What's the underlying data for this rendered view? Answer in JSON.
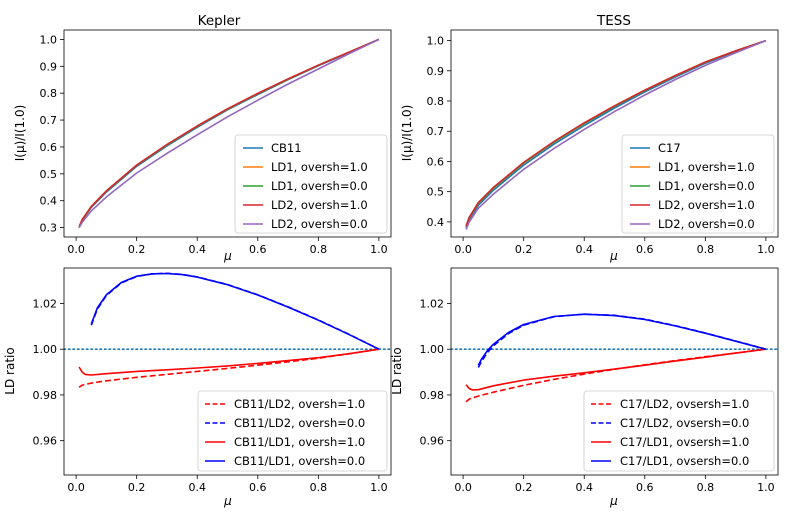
{
  "chart_data": [
    {
      "id": "kepler-intensity",
      "type": "line",
      "title": "Kepler",
      "xlabel": "μ",
      "ylabel": "I(μ)/I(1.0)",
      "xlim": [
        -0.04,
        1.04
      ],
      "ylim": [
        0.265,
        1.035
      ],
      "xticks": [
        0.0,
        0.2,
        0.4,
        0.6,
        0.8,
        1.0
      ],
      "yticks": [
        0.3,
        0.4,
        0.5,
        0.6,
        0.7,
        0.8,
        0.9,
        1.0
      ],
      "xtick_labels": [
        "0.0",
        "0.2",
        "0.4",
        "0.6",
        "0.8",
        "1.0"
      ],
      "ytick_labels": [
        "0.3",
        "0.4",
        "0.5",
        "0.6",
        "0.7",
        "0.8",
        "0.9",
        "1.0"
      ],
      "grid": false,
      "legend_position": "lower-right",
      "series": [
        {
          "name": "CB11",
          "color": "#1f77b4",
          "dash": "solid",
          "x": [
            0.01,
            0.02,
            0.05,
            0.1,
            0.2,
            0.3,
            0.4,
            0.5,
            0.6,
            0.7,
            0.8,
            0.9,
            1.0
          ],
          "y": [
            0.3,
            0.327,
            0.375,
            0.432,
            0.528,
            0.604,
            0.673,
            0.738,
            0.795,
            0.85,
            0.902,
            0.951,
            1.0
          ]
        },
        {
          "name": "LD1, oversh=1.0",
          "color": "#ff7f0e",
          "dash": "solid",
          "x": [
            0.01,
            0.02,
            0.05,
            0.1,
            0.2,
            0.3,
            0.4,
            0.5,
            0.6,
            0.7,
            0.8,
            0.9,
            1.0
          ],
          "y": [
            0.3,
            0.329,
            0.378,
            0.436,
            0.532,
            0.608,
            0.677,
            0.741,
            0.798,
            0.852,
            0.904,
            0.952,
            1.0
          ]
        },
        {
          "name": "LD1, oversh=0.0",
          "color": "#2ca02c",
          "dash": "solid",
          "x": [
            0.01,
            0.02,
            0.05,
            0.1,
            0.2,
            0.3,
            0.4,
            0.5,
            0.6,
            0.7,
            0.8,
            0.9,
            1.0
          ],
          "y": [
            0.3,
            0.329,
            0.378,
            0.436,
            0.532,
            0.608,
            0.677,
            0.741,
            0.798,
            0.852,
            0.904,
            0.952,
            1.0
          ]
        },
        {
          "name": "LD2, oversh=1.0",
          "color": "#d62728",
          "dash": "solid",
          "x": [
            0.01,
            0.02,
            0.05,
            0.1,
            0.2,
            0.3,
            0.4,
            0.5,
            0.6,
            0.7,
            0.8,
            0.9,
            1.0
          ],
          "y": [
            0.303,
            0.33,
            0.379,
            0.437,
            0.533,
            0.609,
            0.678,
            0.742,
            0.799,
            0.853,
            0.904,
            0.952,
            1.0
          ]
        },
        {
          "name": "LD2, oversh=0.0",
          "color": "#9467bd",
          "dash": "solid",
          "x": [
            0.01,
            0.02,
            0.05,
            0.1,
            0.2,
            0.3,
            0.4,
            0.5,
            0.6,
            0.7,
            0.8,
            0.9,
            1.0
          ],
          "y": [
            0.3,
            0.32,
            0.362,
            0.414,
            0.503,
            0.576,
            0.645,
            0.712,
            0.774,
            0.834,
            0.89,
            0.946,
            1.0
          ]
        }
      ]
    },
    {
      "id": "tess-intensity",
      "type": "line",
      "title": "TESS",
      "xlabel": "μ",
      "ylabel": "I(μ)/I(1.0)",
      "xlim": [
        -0.04,
        1.04
      ],
      "ylim": [
        0.35,
        1.035
      ],
      "xticks": [
        0.0,
        0.2,
        0.4,
        0.6,
        0.8,
        1.0
      ],
      "yticks": [
        0.4,
        0.5,
        0.6,
        0.7,
        0.8,
        0.9,
        1.0
      ],
      "xtick_labels": [
        "0.0",
        "0.2",
        "0.4",
        "0.6",
        "0.8",
        "1.0"
      ],
      "ytick_labels": [
        "0.4",
        "0.5",
        "0.6",
        "0.7",
        "0.8",
        "0.9",
        "1.0"
      ],
      "grid": false,
      "legend_position": "lower-right",
      "series": [
        {
          "name": "C17",
          "color": "#1f77b4",
          "dash": "solid",
          "x": [
            0.01,
            0.02,
            0.05,
            0.1,
            0.2,
            0.3,
            0.4,
            0.5,
            0.6,
            0.7,
            0.8,
            0.9,
            1.0
          ],
          "y": [
            0.38,
            0.408,
            0.455,
            0.505,
            0.588,
            0.657,
            0.719,
            0.777,
            0.83,
            0.879,
            0.925,
            0.964,
            1.0
          ]
        },
        {
          "name": "LD1, oversh=1.0",
          "color": "#ff7f0e",
          "dash": "solid",
          "x": [
            0.01,
            0.02,
            0.05,
            0.1,
            0.2,
            0.3,
            0.4,
            0.5,
            0.6,
            0.7,
            0.8,
            0.9,
            1.0
          ],
          "y": [
            0.385,
            0.414,
            0.462,
            0.512,
            0.595,
            0.664,
            0.726,
            0.783,
            0.835,
            0.883,
            0.928,
            0.966,
            1.0
          ]
        },
        {
          "name": "LD1, oversh=0.0",
          "color": "#2ca02c",
          "dash": "solid",
          "x": [
            0.01,
            0.02,
            0.05,
            0.1,
            0.2,
            0.3,
            0.4,
            0.5,
            0.6,
            0.7,
            0.8,
            0.9,
            1.0
          ],
          "y": [
            0.385,
            0.414,
            0.462,
            0.512,
            0.595,
            0.664,
            0.726,
            0.783,
            0.835,
            0.883,
            0.928,
            0.966,
            1.0
          ]
        },
        {
          "name": "LD2, oversh=1.0",
          "color": "#d62728",
          "dash": "solid",
          "x": [
            0.01,
            0.02,
            0.05,
            0.1,
            0.2,
            0.3,
            0.4,
            0.5,
            0.6,
            0.7,
            0.8,
            0.9,
            1.0
          ],
          "y": [
            0.387,
            0.415,
            0.464,
            0.514,
            0.597,
            0.666,
            0.728,
            0.784,
            0.836,
            0.884,
            0.929,
            0.966,
            1.0
          ]
        },
        {
          "name": "LD2, oversh=0.0",
          "color": "#9467bd",
          "dash": "solid",
          "x": [
            0.01,
            0.02,
            0.05,
            0.1,
            0.2,
            0.3,
            0.4,
            0.5,
            0.6,
            0.7,
            0.8,
            0.9,
            1.0
          ],
          "y": [
            0.375,
            0.4,
            0.445,
            0.492,
            0.574,
            0.643,
            0.706,
            0.765,
            0.82,
            0.871,
            0.918,
            0.96,
            1.0
          ]
        }
      ]
    },
    {
      "id": "kepler-ratio",
      "type": "line",
      "title": "",
      "xlabel": "μ",
      "ylabel": "LD ratio",
      "xlim": [
        -0.04,
        1.04
      ],
      "ylim": [
        0.945,
        1.0355
      ],
      "xticks": [
        0.0,
        0.2,
        0.4,
        0.6,
        0.8,
        1.0
      ],
      "yticks": [
        0.96,
        0.98,
        1.0,
        1.02
      ],
      "xtick_labels": [
        "0.0",
        "0.2",
        "0.4",
        "0.6",
        "0.8",
        "1.0"
      ],
      "ytick_labels": [
        "0.96",
        "0.98",
        "1.00",
        "1.02"
      ],
      "grid": false,
      "reference_line": {
        "y": 1.0,
        "color": "#1f77b4",
        "style": "dotted"
      },
      "legend_position": "lower-right",
      "series": [
        {
          "name": "CB11/LD2, oversh=1.0",
          "color": "#ff0000",
          "dash": "dashed",
          "x": [
            0.01,
            0.02,
            0.05,
            0.1,
            0.2,
            0.3,
            0.4,
            0.5,
            0.6,
            0.7,
            0.8,
            0.9,
            1.0
          ],
          "y": [
            0.9833,
            0.9843,
            0.9852,
            0.9862,
            0.9877,
            0.989,
            0.9903,
            0.9916,
            0.993,
            0.9945,
            0.996,
            0.998,
            1.0
          ]
        },
        {
          "name": "CB11/LD2, oversh=0.0",
          "color": "#0000ff",
          "dash": "dashed",
          "x": [
            0.05,
            0.07,
            0.1,
            0.15,
            0.2,
            0.25,
            0.3,
            0.35,
            0.4,
            0.5,
            0.6,
            0.7,
            0.8,
            0.9,
            1.0
          ],
          "y": [
            1.0105,
            1.0175,
            1.0235,
            1.029,
            1.0318,
            1.0329,
            1.0332,
            1.0327,
            1.0316,
            1.0283,
            1.0238,
            1.0185,
            1.0128,
            1.0066,
            1.0
          ]
        },
        {
          "name": "CB11/LD1, oversh=1.0",
          "color": "#ff0000",
          "dash": "solid",
          "x": [
            0.01,
            0.02,
            0.03,
            0.05,
            0.1,
            0.2,
            0.3,
            0.4,
            0.5,
            0.6,
            0.7,
            0.8,
            0.9,
            1.0
          ],
          "y": [
            0.9922,
            0.99,
            0.989,
            0.9887,
            0.9893,
            0.9903,
            0.991,
            0.9918,
            0.9927,
            0.9938,
            0.995,
            0.9963,
            0.998,
            1.0
          ]
        },
        {
          "name": "CB11/LD1, oversh=0.0",
          "color": "#0000ff",
          "dash": "solid",
          "x": [
            0.05,
            0.07,
            0.1,
            0.15,
            0.2,
            0.25,
            0.3,
            0.35,
            0.4,
            0.5,
            0.6,
            0.7,
            0.8,
            0.9,
            1.0
          ],
          "y": [
            1.011,
            1.018,
            1.0238,
            1.0292,
            1.0319,
            1.0329,
            1.0331,
            1.0326,
            1.0315,
            1.0282,
            1.0237,
            1.0184,
            1.0127,
            1.0065,
            1.0
          ]
        }
      ]
    },
    {
      "id": "tess-ratio",
      "type": "line",
      "title": "",
      "xlabel": "μ",
      "ylabel": "LD ratio",
      "xlim": [
        -0.04,
        1.04
      ],
      "ylim": [
        0.945,
        1.0355
      ],
      "xticks": [
        0.0,
        0.2,
        0.4,
        0.6,
        0.8,
        1.0
      ],
      "yticks": [
        0.96,
        0.98,
        1.0,
        1.02
      ],
      "xtick_labels": [
        "0.0",
        "0.2",
        "0.4",
        "0.6",
        "0.8",
        "1.0"
      ],
      "ytick_labels": [
        "0.96",
        "0.98",
        "1.00",
        "1.02"
      ],
      "grid": false,
      "reference_line": {
        "y": 1.0,
        "color": "#1f77b4",
        "style": "dotted"
      },
      "legend_position": "lower-right",
      "series": [
        {
          "name": "C17/LD2, ovsersh=1.0",
          "color": "#ff0000",
          "dash": "dashed",
          "x": [
            0.01,
            0.02,
            0.05,
            0.1,
            0.2,
            0.3,
            0.4,
            0.5,
            0.6,
            0.7,
            0.8,
            0.9,
            1.0
          ],
          "y": [
            0.977,
            0.9782,
            0.9795,
            0.9812,
            0.9842,
            0.9868,
            0.9891,
            0.9912,
            0.9932,
            0.995,
            0.9967,
            0.9983,
            1.0
          ]
        },
        {
          "name": "C17/LD2, ovsersh=0.0",
          "color": "#0000ff",
          "dash": "dashed",
          "x": [
            0.05,
            0.06,
            0.08,
            0.1,
            0.15,
            0.2,
            0.3,
            0.4,
            0.5,
            0.6,
            0.7,
            0.8,
            0.9,
            1.0
          ],
          "y": [
            0.992,
            0.9945,
            0.9985,
            1.0015,
            1.0068,
            1.0105,
            1.0142,
            1.0153,
            1.0148,
            1.0131,
            1.0103,
            1.0071,
            1.0036,
            1.0
          ]
        },
        {
          "name": "C17/LD1, ovsersh=1.0",
          "color": "#ff0000",
          "dash": "solid",
          "x": [
            0.01,
            0.02,
            0.03,
            0.05,
            0.1,
            0.2,
            0.3,
            0.4,
            0.5,
            0.6,
            0.7,
            0.8,
            0.9,
            1.0
          ],
          "y": [
            0.9845,
            0.9828,
            0.9822,
            0.9823,
            0.984,
            0.9865,
            0.9882,
            0.9897,
            0.9913,
            0.993,
            0.9948,
            0.9965,
            0.9983,
            1.0
          ]
        },
        {
          "name": "C17/LD1, ovsersh=0.0",
          "color": "#0000ff",
          "dash": "solid",
          "x": [
            0.05,
            0.06,
            0.08,
            0.1,
            0.15,
            0.2,
            0.3,
            0.4,
            0.5,
            0.6,
            0.7,
            0.8,
            0.9,
            1.0
          ],
          "y": [
            0.993,
            0.9955,
            0.9993,
            1.0022,
            1.0073,
            1.0108,
            1.0143,
            1.0153,
            1.0147,
            1.013,
            1.0102,
            1.007,
            1.0035,
            1.0
          ]
        }
      ]
    }
  ]
}
